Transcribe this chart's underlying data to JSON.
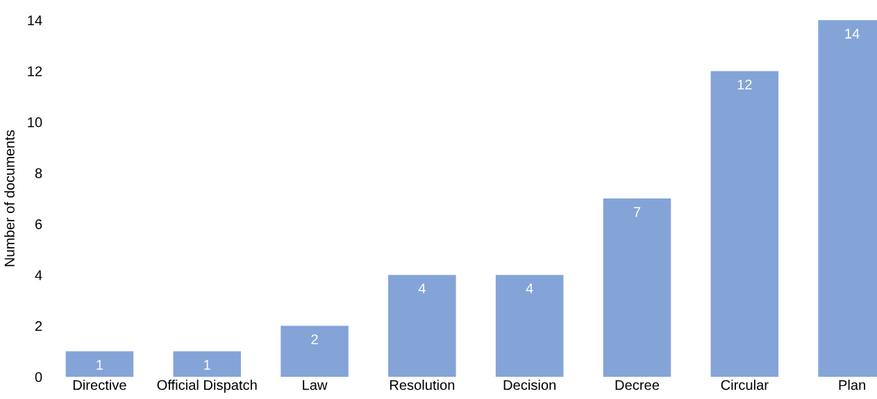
{
  "chart_data": {
    "type": "bar",
    "ylabel": "Number of documents",
    "categories": [
      "Directive",
      "Official Dispatch",
      "Law",
      "Resolution",
      "Decision",
      "Decree",
      "Circular",
      "Plan"
    ],
    "values": [
      1,
      1,
      2,
      4,
      4,
      7,
      12,
      14
    ],
    "color": "#84a4d8",
    "ylim": [
      0,
      14
    ],
    "yticks": [
      0,
      2,
      4,
      6,
      8,
      10,
      12,
      14
    ],
    "grid": false,
    "data_labels": true
  }
}
